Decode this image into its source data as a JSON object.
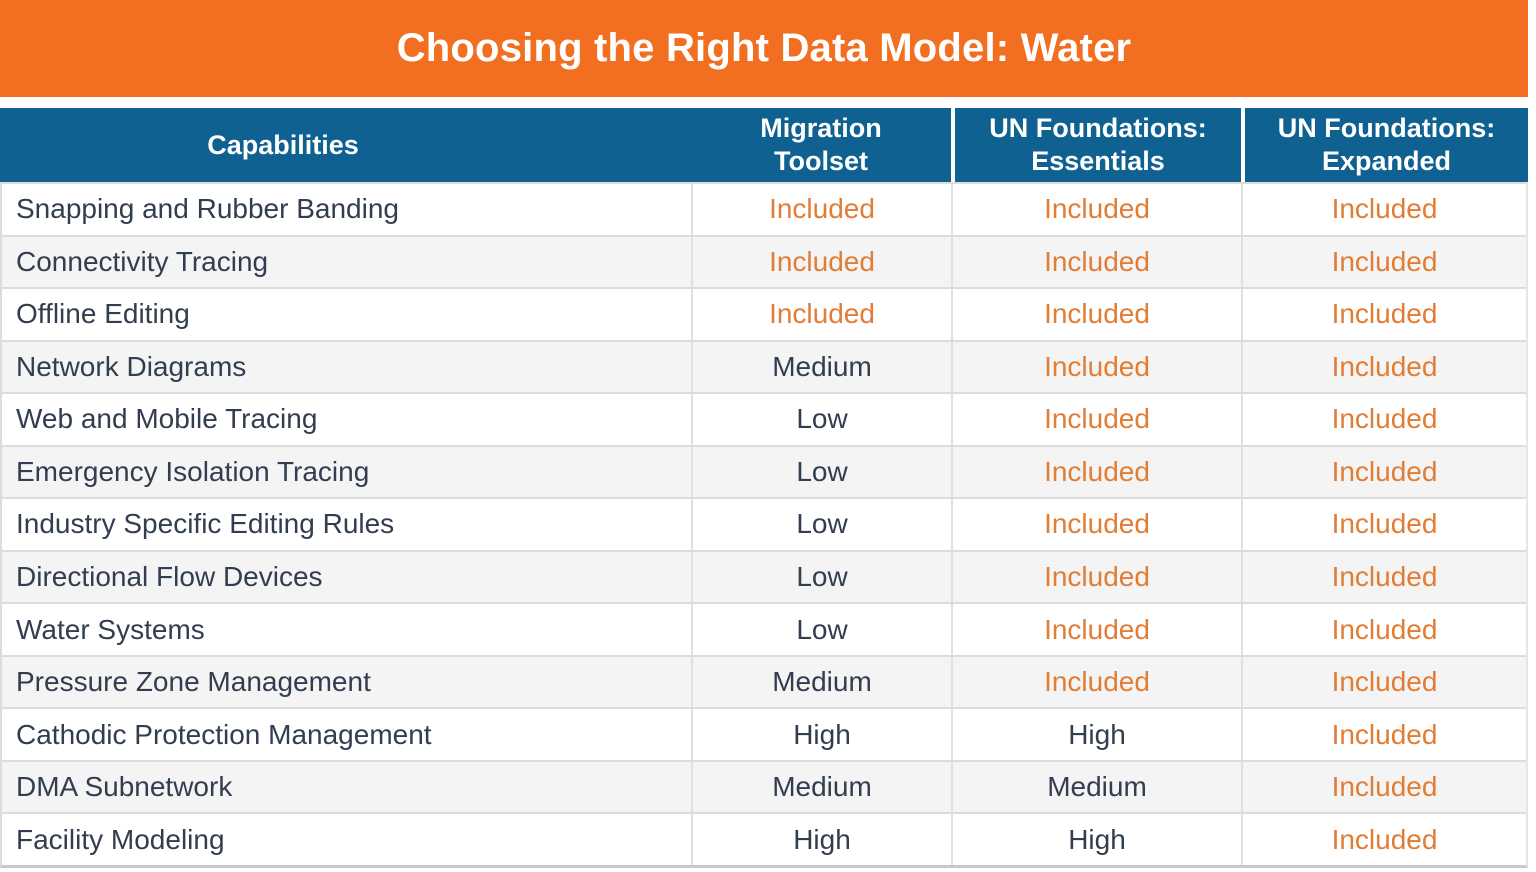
{
  "colors": {
    "banner_bg": "#F26E21",
    "header_bg": "#0E6191",
    "header_text": "#FFFFFF",
    "row_bg": "#FFFFFF",
    "row_alt_bg": "#F4F4F4",
    "border": "#DCDCDC",
    "navy_text": "#323E50",
    "included_text": "#E17D35"
  },
  "banner": {
    "title": "Choosing the Right Data Model: Water"
  },
  "table": {
    "header": {
      "columns": [
        "Capabilities",
        "Migration Toolset",
        "UN Foundations: Essentials",
        "UN Foundations: Expanded"
      ]
    },
    "rows": [
      {
        "capability": "Snapping and Rubber Banding",
        "migration_toolset": "Included",
        "un_essentials": "Included",
        "un_expanded": "Included"
      },
      {
        "capability": "Connectivity Tracing",
        "migration_toolset": "Included",
        "un_essentials": "Included",
        "un_expanded": "Included"
      },
      {
        "capability": "Offline Editing",
        "migration_toolset": "Included",
        "un_essentials": "Included",
        "un_expanded": "Included"
      },
      {
        "capability": "Network Diagrams",
        "migration_toolset": "Medium",
        "un_essentials": "Included",
        "un_expanded": "Included"
      },
      {
        "capability": "Web and Mobile Tracing",
        "migration_toolset": "Low",
        "un_essentials": "Included",
        "un_expanded": "Included"
      },
      {
        "capability": "Emergency Isolation Tracing",
        "migration_toolset": "Low",
        "un_essentials": "Included",
        "un_expanded": "Included"
      },
      {
        "capability": "Industry Specific Editing Rules",
        "migration_toolset": "Low",
        "un_essentials": "Included",
        "un_expanded": "Included"
      },
      {
        "capability": "Directional Flow Devices",
        "migration_toolset": "Low",
        "un_essentials": "Included",
        "un_expanded": "Included"
      },
      {
        "capability": "Water Systems",
        "migration_toolset": "Low",
        "un_essentials": "Included",
        "un_expanded": "Included"
      },
      {
        "capability": "Pressure Zone Management",
        "migration_toolset": "Medium",
        "un_essentials": "Included",
        "un_expanded": "Included"
      },
      {
        "capability": "Cathodic Protection Management",
        "migration_toolset": "High",
        "un_essentials": "High",
        "un_expanded": "Included"
      },
      {
        "capability": "DMA Subnetwork",
        "migration_toolset": "Medium",
        "un_essentials": "Medium",
        "un_expanded": "Included"
      },
      {
        "capability": "Facility Modeling",
        "migration_toolset": "High",
        "un_essentials": "High",
        "un_expanded": "Included"
      }
    ]
  }
}
